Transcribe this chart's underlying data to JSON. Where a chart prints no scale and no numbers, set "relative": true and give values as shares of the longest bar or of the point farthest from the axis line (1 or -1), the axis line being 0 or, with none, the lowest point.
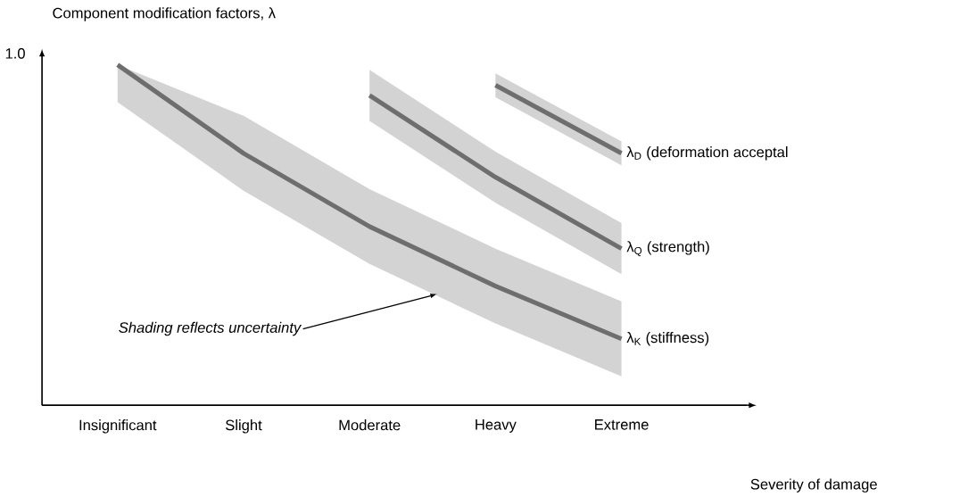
{
  "chart_data": {
    "type": "line",
    "relative": true,
    "ylabel": "Component  modification factors, λ",
    "xlabel": "Severity of damage",
    "categories": [
      "Insignificant",
      "Slight",
      "Moderate",
      "Heavy",
      "Extreme"
    ],
    "series": [
      {
        "name": "λ$_{D}$ (deformation acceptal",
        "color": "#6e6e6e",
        "values": [
          null,
          null,
          null,
          0.94,
          0.74
        ],
        "lower": [
          null,
          null,
          null,
          0.905,
          0.705
        ],
        "upper": [
          null,
          null,
          null,
          0.975,
          0.775
        ]
      },
      {
        "name": "λ$_{Q}$ (strength)",
        "color": "#6e6e6e",
        "values": [
          null,
          null,
          0.91,
          0.67,
          0.46
        ],
        "lower": [
          null,
          null,
          0.835,
          0.595,
          0.385
        ],
        "upper": [
          null,
          null,
          0.985,
          0.745,
          0.535
        ]
      },
      {
        "name": "λ$_{K}$ (stiffness)",
        "color": "#6e6e6e",
        "values": [
          1.0,
          0.74,
          0.525,
          0.35,
          0.195
        ],
        "lower": [
          0.89,
          0.63,
          0.415,
          0.24,
          0.085
        ],
        "upper": [
          1.0,
          0.85,
          0.635,
          0.46,
          0.305
        ]
      }
    ],
    "annotations": [
      "1.0",
      "*Shading reflects uncertainty*"
    ],
    "grid": false,
    "legend": false,
    "marker": "none",
    "line_style": "solid"
  }
}
